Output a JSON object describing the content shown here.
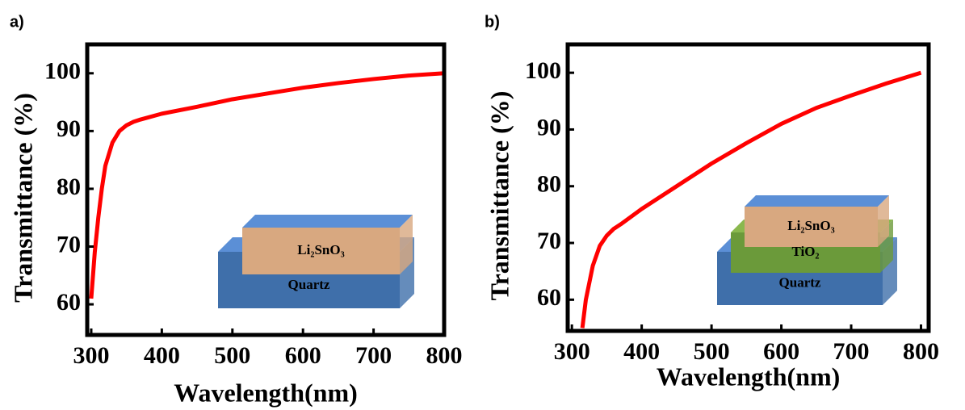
{
  "chart_data": [
    {
      "type": "line",
      "panel_label": "a)",
      "x_label": "Wavelength(nm)",
      "y_label": "Transmittance (%)",
      "xlim": [
        294.3,
        800
      ],
      "ylim": [
        54.7,
        105
      ],
      "xticks": [
        300,
        400,
        500,
        600,
        700,
        800
      ],
      "yticks": [
        60,
        70,
        80,
        90,
        100
      ],
      "series": [
        {
          "color": "#ff0000",
          "x": [
            300,
            305,
            310,
            315,
            320,
            330,
            340,
            350,
            360,
            370,
            400,
            450,
            500,
            550,
            600,
            650,
            700,
            750,
            800
          ],
          "values": [
            61,
            69,
            75,
            80,
            84,
            88,
            90,
            91,
            91.6,
            92,
            93,
            94.2,
            95.5,
            96.5,
            97.5,
            98.3,
            99,
            99.6,
            100
          ]
        }
      ],
      "inset": [
        "Li₂SnO₃",
        "Quartz"
      ]
    },
    {
      "type": "line",
      "panel_label": "b)",
      "x_label": "Wavelength(nm)",
      "y_label": "Transmittance (%)",
      "xlim": [
        294,
        811
      ],
      "ylim": [
        54.5,
        105
      ],
      "xticks": [
        300,
        400,
        500,
        600,
        700,
        800
      ],
      "yticks": [
        60,
        70,
        80,
        90,
        100
      ],
      "series": [
        {
          "color": "#ff0000",
          "x": [
            315,
            320,
            330,
            340,
            350,
            360,
            370,
            400,
            450,
            500,
            550,
            600,
            650,
            700,
            750,
            800
          ],
          "values": [
            55,
            60,
            66,
            69.5,
            71.3,
            72.5,
            73.3,
            76,
            80,
            84,
            87.6,
            91,
            93.8,
            96,
            98.1,
            100
          ]
        }
      ],
      "inset": [
        "Li₂SnO₃",
        "TiO₂",
        "Quartz"
      ]
    }
  ]
}
